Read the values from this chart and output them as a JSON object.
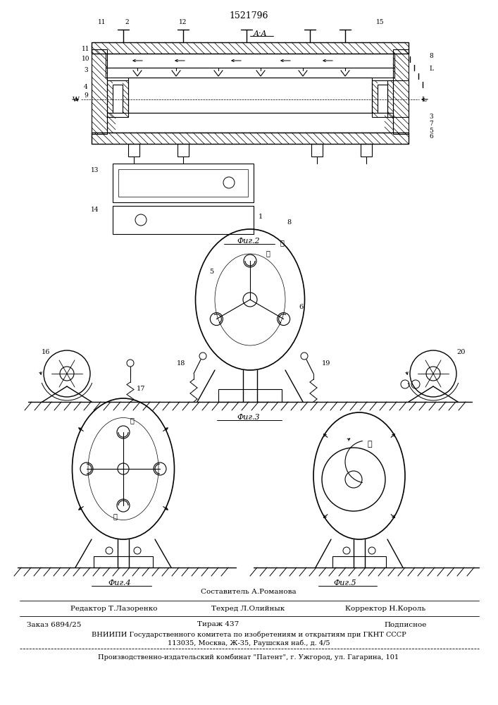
{
  "patent_number": "1521796",
  "aa_label": "A·A",
  "fig2_label": "Фиг.2",
  "fig3_label": "Фиг.3",
  "fig4_label": "Фиг.4",
  "fig5_label": "Фиг.5",
  "footer_composer": "Составитель А.Романова",
  "footer_editor": "Редактор Т.Лазоренко",
  "footer_techred": "Техред Л.Олийнык",
  "footer_corrector": "Корректор Н.Король",
  "footer_order": "Заказ 6894/25",
  "footer_print": "Тираж 437",
  "footer_sub": "Подписное",
  "footer_vniipi": "ВНИИПИ Государственного комитета по изобретениям и открытиям при ГКНТ СССР",
  "footer_address": "113035, Москва, Ж-35, Раушская наб., д. 4/5",
  "footer_publisher": "Производственно-издательский комбинат \"Патент\", г. Ужгород, ул. Гагарина, 101",
  "bg_color": "#ffffff",
  "lc": "#000000"
}
